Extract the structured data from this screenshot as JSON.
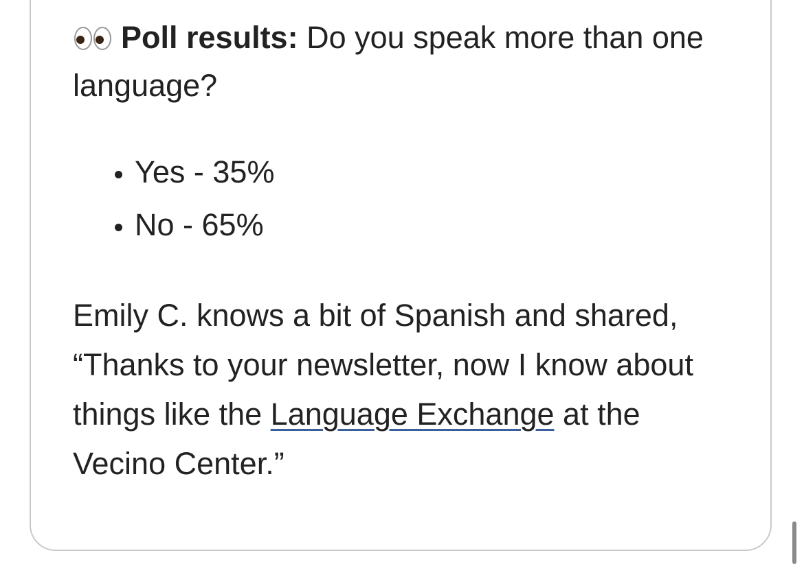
{
  "poll": {
    "label": "Poll results:",
    "question": "Do you speak more than one language?",
    "options": [
      "Yes - 35%",
      "No - 65%"
    ]
  },
  "quote": {
    "text_before": "Emily C. knows a bit of Spanish and shared, “Thanks to your newsletter, now I know about things like the ",
    "link": "Language Exchange",
    "text_after": " at the Vecino Center.”"
  }
}
